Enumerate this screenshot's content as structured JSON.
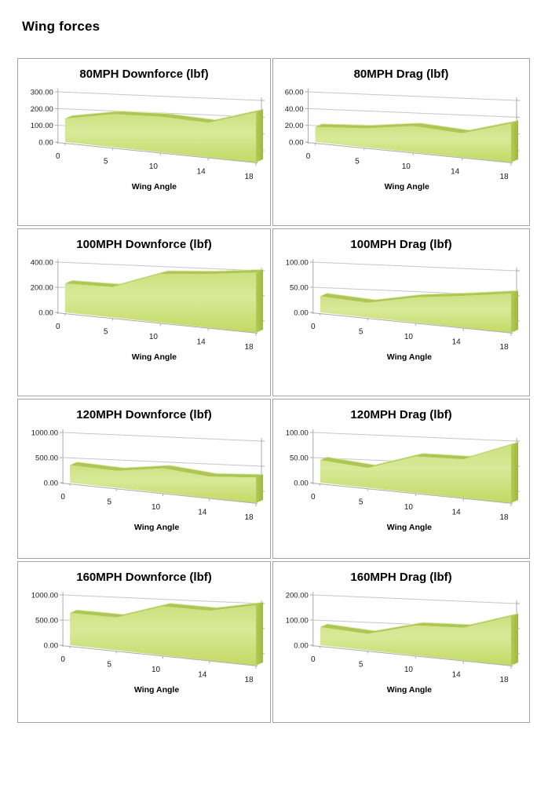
{
  "page": {
    "title": "Wing forces"
  },
  "colors": {
    "card_border": "#a3a3a3",
    "gridline": "#c6c6c6",
    "axis_line": "#ababab",
    "area_ribbon_top": "#aec754",
    "area_ribbon_highlight": "#e3edb4",
    "area_side_dark": "#9cba3e",
    "area_front_top": "#cde07f",
    "area_front_mid": "#d9e999",
    "area_front_bottom": "#c3d963",
    "text": "#000000"
  },
  "chart_data": [
    {
      "type": "area",
      "title": "80MPH Downforce (lbf)",
      "xlabel": "Wing Angle",
      "categories": [
        0,
        5,
        10,
        14,
        18
      ],
      "values": [
        140,
        175,
        170,
        150,
        200
      ],
      "y_ticks": [
        0,
        100,
        200,
        300
      ],
      "y_tick_labels": [
        "0.00",
        "100.00",
        "200.00",
        "300.00"
      ],
      "ylim": [
        0,
        300
      ],
      "grid": true,
      "legend": "none",
      "style": "3d-green"
    },
    {
      "type": "area",
      "title": "80MPH Drag (lbf)",
      "xlabel": "Wing Angle",
      "categories": [
        0,
        5,
        10,
        14,
        18
      ],
      "values": [
        18,
        20,
        25,
        21,
        31
      ],
      "y_ticks": [
        0,
        20,
        40,
        60
      ],
      "y_tick_labels": [
        "0.00",
        "20.00",
        "40.00",
        "60.00"
      ],
      "ylim": [
        0,
        60
      ],
      "grid": true,
      "legend": "none",
      "style": "3d-green"
    },
    {
      "type": "area",
      "title": "100MPH Downforce (lbf)",
      "xlabel": "Wing Angle",
      "categories": [
        0,
        5,
        10,
        14,
        18
      ],
      "values": [
        230,
        215,
        310,
        310,
        320
      ],
      "y_ticks": [
        0,
        200,
        400
      ],
      "y_tick_labels": [
        "0.00",
        "200.00",
        "400.00"
      ],
      "ylim": [
        0,
        400
      ],
      "grid": true,
      "legend": "none",
      "style": "3d-green"
    },
    {
      "type": "area",
      "title": "100MPH Drag (lbf)",
      "xlabel": "Wing Angle",
      "categories": [
        0,
        5,
        10,
        14,
        18
      ],
      "values": [
        32,
        26,
        40,
        46,
        52
      ],
      "y_ticks": [
        0,
        50,
        100
      ],
      "y_tick_labels": [
        "0.00",
        "50.00",
        "100.00"
      ],
      "ylim": [
        0,
        100
      ],
      "grid": true,
      "legend": "none",
      "style": "3d-green"
    },
    {
      "type": "area",
      "title": "120MPH Downforce (lbf)",
      "xlabel": "Wing Angle",
      "categories": [
        0,
        5,
        10,
        14,
        18
      ],
      "values": [
        350,
        300,
        390,
        310,
        340
      ],
      "y_ticks": [
        0,
        500,
        1000
      ],
      "y_tick_labels": [
        "0.00",
        "500.00",
        "1000.00"
      ],
      "ylim": [
        0,
        1000
      ],
      "grid": true,
      "legend": "none",
      "style": "3d-green"
    },
    {
      "type": "area",
      "title": "120MPH Drag (lbf)",
      "xlabel": "Wing Angle",
      "categories": [
        0,
        5,
        10,
        14,
        18
      ],
      "values": [
        45,
        35,
        58,
        56,
        77
      ],
      "y_ticks": [
        0,
        50,
        100
      ],
      "y_tick_labels": [
        "0.00",
        "50.00",
        "100.00"
      ],
      "ylim": [
        0,
        100
      ],
      "grid": true,
      "legend": "none",
      "style": "3d-green"
    },
    {
      "type": "area",
      "title": "160MPH Downforce (lbf)",
      "xlabel": "Wing Angle",
      "categories": [
        0,
        5,
        10,
        14,
        18
      ],
      "values": [
        640,
        580,
        780,
        720,
        800
      ],
      "y_ticks": [
        0,
        500,
        1000
      ],
      "y_tick_labels": [
        "0.00",
        "500.00",
        "1000.00"
      ],
      "ylim": [
        0,
        1000
      ],
      "grid": true,
      "legend": "none",
      "style": "3d-green"
    },
    {
      "type": "area",
      "title": "160MPH Drag (lbf)",
      "xlabel": "Wing Angle",
      "categories": [
        0,
        5,
        10,
        14,
        18
      ],
      "values": [
        72,
        58,
        95,
        95,
        130
      ],
      "y_ticks": [
        0,
        100,
        200
      ],
      "y_tick_labels": [
        "0.00",
        "100.00",
        "200.00"
      ],
      "ylim": [
        0,
        200
      ],
      "grid": true,
      "legend": "none",
      "style": "3d-green"
    }
  ]
}
